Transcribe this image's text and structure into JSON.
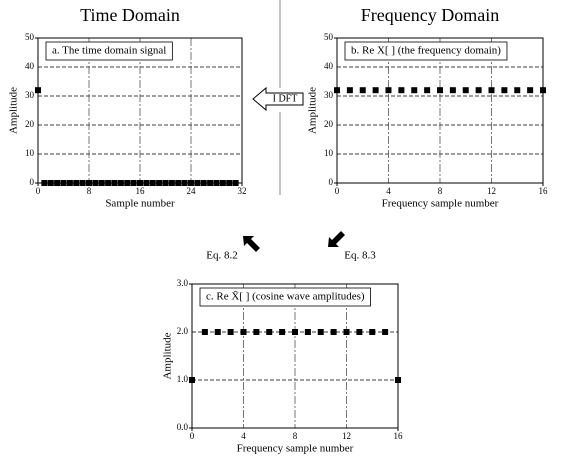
{
  "chart_data": [
    {
      "type": "scatter",
      "title": "Time Domain",
      "label": "a.  The time domain signal",
      "x_label": "Sample number",
      "y_label": "Amplitude",
      "x": [
        0,
        1,
        2,
        3,
        4,
        5,
        6,
        7,
        8,
        9,
        10,
        11,
        12,
        13,
        14,
        15,
        16,
        17,
        18,
        19,
        20,
        21,
        22,
        23,
        24,
        25,
        26,
        27,
        28,
        29,
        30,
        31
      ],
      "values": [
        32,
        0,
        0,
        0,
        0,
        0,
        0,
        0,
        0,
        0,
        0,
        0,
        0,
        0,
        0,
        0,
        0,
        0,
        0,
        0,
        0,
        0,
        0,
        0,
        0,
        0,
        0,
        0,
        0,
        0,
        0,
        0
      ],
      "color": "#000000",
      "xlim": [
        0,
        32
      ],
      "xticks": [
        0,
        8,
        16,
        24,
        32
      ],
      "ylim": [
        0,
        50
      ],
      "yticks": [
        0,
        10,
        20,
        30,
        40,
        50
      ],
      "grid": true
    },
    {
      "type": "scatter",
      "title": "Frequency Domain",
      "label": "b.  Re X[ ]  (the frequency domain)",
      "x_label": "Frequency sample number",
      "y_label": "Amplitude",
      "x": [
        0,
        1,
        2,
        3,
        4,
        5,
        6,
        7,
        8,
        9,
        10,
        11,
        12,
        13,
        14,
        15,
        16
      ],
      "values": [
        32,
        32,
        32,
        32,
        32,
        32,
        32,
        32,
        32,
        32,
        32,
        32,
        32,
        32,
        32,
        32,
        32
      ],
      "color": "#000000",
      "xlim": [
        0,
        16
      ],
      "xticks": [
        0,
        4,
        8,
        12,
        16
      ],
      "ylim": [
        0,
        50
      ],
      "yticks": [
        0,
        10,
        20,
        30,
        40,
        50
      ],
      "grid": true
    },
    {
      "type": "scatter",
      "label": "c.  Re X̄[ ]  (cosine wave amplitudes)",
      "x_label": "Frequency sample number",
      "y_label": "Amplitude",
      "x": [
        0,
        1,
        2,
        3,
        4,
        5,
        6,
        7,
        8,
        9,
        10,
        11,
        12,
        13,
        14,
        15,
        16
      ],
      "values": [
        1,
        2,
        2,
        2,
        2,
        2,
        2,
        2,
        2,
        2,
        2,
        2,
        2,
        2,
        2,
        2,
        1
      ],
      "color": "#000000",
      "xlim": [
        0,
        16
      ],
      "xticks": [
        0,
        4,
        8,
        12,
        16
      ],
      "ylim": [
        0,
        3
      ],
      "yticks": [
        {
          "value": 0,
          "label": "0.0"
        },
        {
          "value": 1,
          "label": "1.0"
        },
        {
          "value": 2,
          "label": "2.0"
        },
        {
          "value": 3,
          "label": "3.0"
        }
      ],
      "grid": true
    }
  ],
  "annotations": {
    "idft": "I DFT",
    "eq_a": "Eq. 8.2",
    "eq_b": "Eq. 8.3"
  }
}
